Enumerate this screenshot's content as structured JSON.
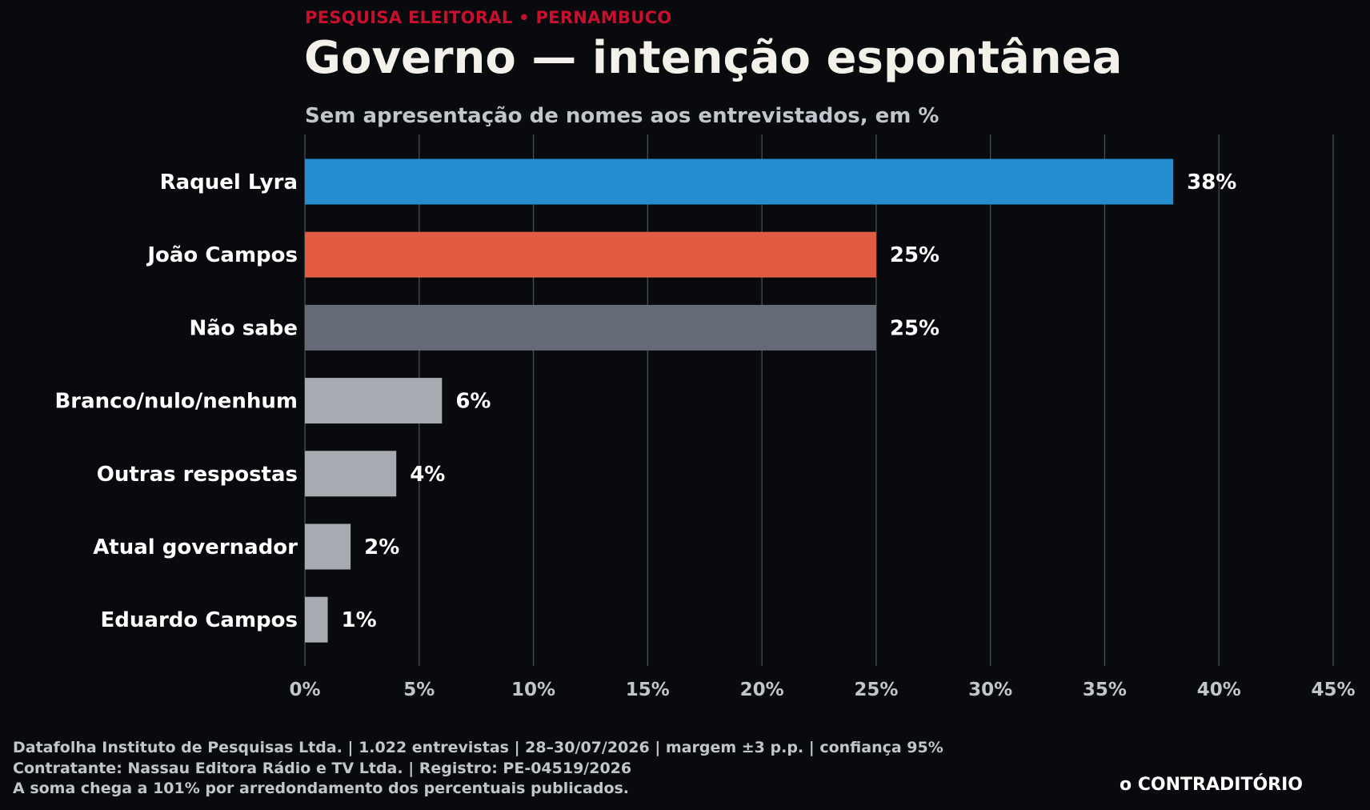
{
  "header": {
    "kicker": "PESQUISA ELEITORAL • PERNAMBUCO",
    "title": "Governo — intenção espontânea",
    "subtitle": "Sem apresentação de nomes aos entrevistados, em %"
  },
  "chart_data": {
    "type": "bar",
    "orientation": "horizontal",
    "categories": [
      "Raquel Lyra",
      "João Campos",
      "Não sabe",
      "Branco/nulo/nenhum",
      "Outras respostas",
      "Atual governador",
      "Eduardo Campos"
    ],
    "values": [
      38,
      25,
      25,
      6,
      4,
      2,
      1
    ],
    "value_labels": [
      "38%",
      "25%",
      "25%",
      "6%",
      "4%",
      "2%",
      "1%"
    ],
    "bar_colors": [
      "#248dd0",
      "#e25c44",
      "#646a76",
      "#a6abb2",
      "#a6abb2",
      "#a6abb2",
      "#a6abb2"
    ],
    "xlim": [
      0,
      45
    ],
    "x_ticks": [
      0,
      5,
      10,
      15,
      20,
      25,
      30,
      35,
      40,
      45
    ],
    "x_tick_labels": [
      "0%",
      "5%",
      "10%",
      "15%",
      "20%",
      "25%",
      "30%",
      "35%",
      "40%",
      "45%"
    ],
    "grid": "vertical",
    "title": "Governo — intenção espontânea",
    "subtitle": "Sem apresentação de nomes aos entrevistados, em %"
  },
  "footer": {
    "line1": "Datafolha Instituto de Pesquisas Ltda. | 1.022 entrevistas | 28–30/07/2026 | margem ±3 p.p. | confiança 95%",
    "line2": "Contratante: Nassau Editora Rádio e TV Ltda. | Registro: PE-04519/2026",
    "line3": "A soma chega a 101% por arredondamento dos percentuais publicados.",
    "brand": "o CONTRADITÓRIO"
  },
  "colors": {
    "background": "#080a0e",
    "kicker": "#c8102e",
    "title": "#f4f1ea",
    "muted": "#c2c5cb",
    "grid": "#4a4e56"
  }
}
